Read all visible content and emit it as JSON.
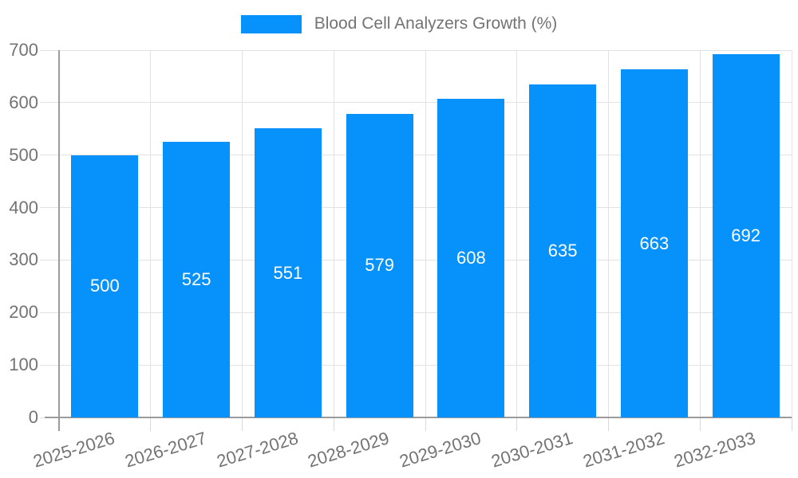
{
  "chart_data": {
    "type": "bar",
    "title": "Blood Cell Analyzers Growth (%)",
    "categories": [
      "2025-2026",
      "2026-2027",
      "2027-2028",
      "2028-2029",
      "2029-2030",
      "2030-2031",
      "2031-2032",
      "2032-2033"
    ],
    "values": [
      500,
      525,
      551,
      579,
      608,
      635,
      663,
      692
    ],
    "xlabel": "",
    "ylabel": "",
    "ylim": [
      0,
      700
    ],
    "ytick_step": 100,
    "ytick_labels": [
      "0",
      "100",
      "200",
      "300",
      "400",
      "500",
      "600",
      "700"
    ],
    "grid": true,
    "legend_position": "top",
    "x_label_rotation_deg": -17,
    "value_labels_inside": true,
    "colors": {
      "bar": "#0691fb",
      "value_label": "#ffffff",
      "axis_text": "#737373",
      "gridline": "#e2e2e2",
      "tick": "#d9d9d9",
      "axis_line": "#9b9b9b",
      "background": "#ffffff"
    }
  }
}
